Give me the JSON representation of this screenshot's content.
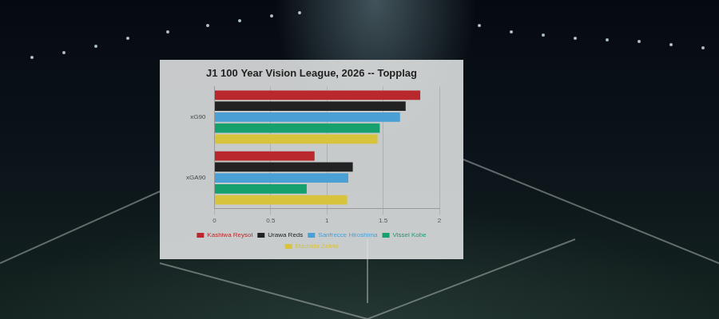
{
  "chart_data": {
    "type": "bar",
    "orientation": "horizontal",
    "title": "J1 100 Year Vision League, 2026 -- Topplag",
    "categories": [
      "xG90",
      "xGA90"
    ],
    "series": [
      {
        "name": "Kashiwa Reysol",
        "color": "#b8282c",
        "values": [
          1.83,
          0.89
        ]
      },
      {
        "name": "Urawa Reds",
        "color": "#222222",
        "values": [
          1.7,
          1.23
        ]
      },
      {
        "name": "Sanfrecce Hiroshima",
        "color": "#4a9fd4",
        "values": [
          1.65,
          1.19
        ]
      },
      {
        "name": "Vissel Kobe",
        "color": "#15a06e",
        "values": [
          1.47,
          0.82
        ]
      },
      {
        "name": "Machida Zelvia",
        "color": "#d8c43c",
        "values": [
          1.45,
          1.18
        ]
      }
    ],
    "xlim": [
      0,
      2
    ],
    "xticks": [
      0,
      0.5,
      1,
      1.5,
      2
    ],
    "grid": true,
    "legend": "bottom"
  }
}
